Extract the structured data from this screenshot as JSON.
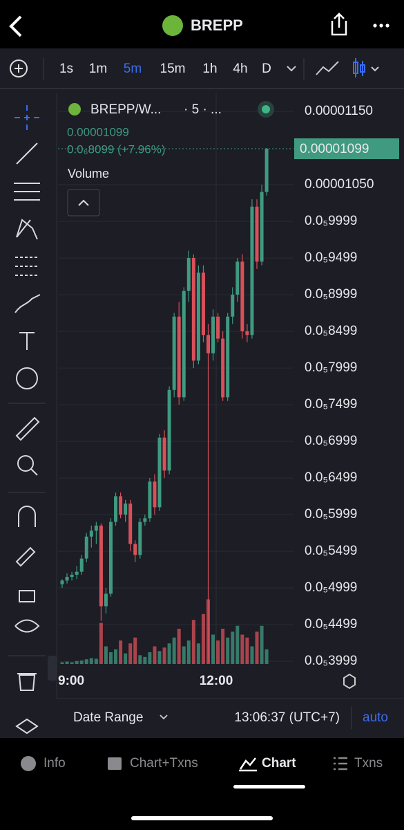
{
  "header": {
    "title": "BREPP"
  },
  "toolbar": {
    "timeframes": [
      "1s",
      "1m",
      "5m",
      "15m",
      "1h",
      "4h",
      "D"
    ],
    "active": 2
  },
  "chart_data": {
    "type": "candlestick",
    "legend": {
      "symbol": "BREPP/W...",
      "interval": "· 5 · ...",
      "price": "0.00001099",
      "change": "0.0₆8099 (+7.96%)",
      "volume": "Volume"
    },
    "up_color": "#3f9a80",
    "down_color": "#d9505a",
    "open": [
      5.05e-06,
      5.1e-06,
      5.15e-06,
      5.18e-06,
      5.22e-06,
      5.4e-06,
      5.7e-06,
      5.78e-06,
      5.85e-06,
      4.75e-06,
      4.92e-06,
      5.9e-06,
      6.25e-06,
      6e-06,
      6.15e-06,
      5.6e-06,
      5.45e-06,
      5.9e-06,
      5.95e-06,
      6.45e-06,
      6.1e-06,
      7.05e-06,
      6.6e-06,
      7.7e-06,
      8.7e-06,
      7.6e-06,
      9.05e-06,
      9.5e-06,
      8.1e-06,
      9.3e-06,
      8.45e-06,
      8.2e-06,
      8.7e-06,
      8.4e-06,
      7.6e-06,
      8.7e-06,
      9e-06,
      9.45e-06,
      8.5e-06,
      8.45e-06,
      1.02e-05,
      9.45e-06,
      1.04e-05
    ],
    "high": [
      5.12e-06,
      5.2e-06,
      5.22e-06,
      5.3e-06,
      5.45e-06,
      5.75e-06,
      5.85e-06,
      5.9e-06,
      5.88e-06,
      5e-06,
      5.95e-06,
      6.3e-06,
      6.3e-06,
      6.2e-06,
      6.2e-06,
      5.65e-06,
      5.95e-06,
      6e-06,
      6.5e-06,
      6.55e-06,
      7.1e-06,
      7.15e-06,
      7.75e-06,
      8.75e-06,
      8.9e-06,
      9.1e-06,
      9.6e-06,
      9.55e-06,
      9.4e-06,
      9.4e-06,
      8.6e-06,
      8.8e-06,
      8.75e-06,
      8.5e-06,
      8.75e-06,
      9.1e-06,
      9.5e-06,
      9.55e-06,
      8.6e-06,
      1.03e-05,
      1.03e-05,
      1.05e-05,
      1.1e-05
    ],
    "low": [
      5e-06,
      5.06e-06,
      5.1e-06,
      5.12e-06,
      5.18e-06,
      5.35e-06,
      5.55e-06,
      5.6e-06,
      4.55e-06,
      4.65e-06,
      4.88e-06,
      5.85e-06,
      5.95e-06,
      5.9e-06,
      5.5e-06,
      5.35e-06,
      5.4e-06,
      5.85e-06,
      5.9e-06,
      6e-06,
      6.05e-06,
      6.5e-06,
      6.55e-06,
      7.6e-06,
      7.5e-06,
      7.55e-06,
      8.9e-06,
      8e-06,
      8.05e-06,
      8.35e-06,
      3.98e-06,
      8.1e-06,
      8.35e-06,
      7.55e-06,
      7.55e-06,
      8.6e-06,
      8.9e-06,
      8.4e-06,
      8.35e-06,
      8.4e-06,
      9.35e-06,
      9.4e-06,
      1.035e-05
    ],
    "close": [
      5.1e-06,
      5.15e-06,
      5.18e-06,
      5.22e-06,
      5.4e-06,
      5.7e-06,
      5.78e-06,
      5.85e-06,
      4.75e-06,
      4.92e-06,
      5.9e-06,
      6.25e-06,
      6e-06,
      6.15e-06,
      5.6e-06,
      5.45e-06,
      5.9e-06,
      5.95e-06,
      6.45e-06,
      6.1e-06,
      7.05e-06,
      6.6e-06,
      7.7e-06,
      8.7e-06,
      7.6e-06,
      9.05e-06,
      9.5e-06,
      8.1e-06,
      9.3e-06,
      8.45e-06,
      8.2e-06,
      8.7e-06,
      8.4e-06,
      7.6e-06,
      8.7e-06,
      9e-06,
      9.45e-06,
      8.5e-06,
      8.45e-06,
      1.02e-05,
      9.45e-06,
      1.04e-05,
      1.099e-05
    ],
    "volume": [
      3,
      4,
      3,
      5,
      6,
      8,
      10,
      9,
      70,
      30,
      20,
      25,
      40,
      18,
      35,
      45,
      15,
      12,
      20,
      30,
      22,
      28,
      35,
      45,
      60,
      30,
      40,
      75,
      35,
      85,
      110,
      50,
      40,
      60,
      45,
      55,
      65,
      50,
      45,
      30,
      55,
      65,
      25
    ],
    "ylim": [
      3.962e-06,
      1.1745e-05
    ],
    "yticks": [
      {
        "value": 1.15e-05,
        "label": "0.00001150"
      },
      {
        "value": 1.05e-05,
        "label": "0.00001050"
      },
      {
        "value": 9.999e-06,
        "label": "0.0₅9999"
      },
      {
        "value": 9.499e-06,
        "label": "0.0₅9499"
      },
      {
        "value": 8.999e-06,
        "label": "0.0₅8999"
      },
      {
        "value": 8.499e-06,
        "label": "0.0₅8499"
      },
      {
        "value": 7.999e-06,
        "label": "0.0₅7999"
      },
      {
        "value": 7.499e-06,
        "label": "0.0₅7499"
      },
      {
        "value": 6.999e-06,
        "label": "0.0₅6999"
      },
      {
        "value": 6.499e-06,
        "label": "0.0₅6499"
      },
      {
        "value": 5.999e-06,
        "label": "0.0₅5999"
      },
      {
        "value": 5.499e-06,
        "label": "0.0₅5499"
      },
      {
        "value": 4.999e-06,
        "label": "0.0₅4999"
      },
      {
        "value": 4.499e-06,
        "label": "0.0₅4499"
      },
      {
        "value": 3.999e-06,
        "label": "0.0₅3999"
      }
    ],
    "last_price": {
      "value": 1.099e-05,
      "label": "0.00001099"
    },
    "x_labels": [
      "9:00",
      "12:00"
    ]
  },
  "footer": {
    "date_range": "Date Range",
    "time": "13:06:37 (UTC+7)",
    "mode": "auto"
  },
  "tabs": [
    "Info",
    "Chart+Txns",
    "Chart",
    "Txns"
  ]
}
